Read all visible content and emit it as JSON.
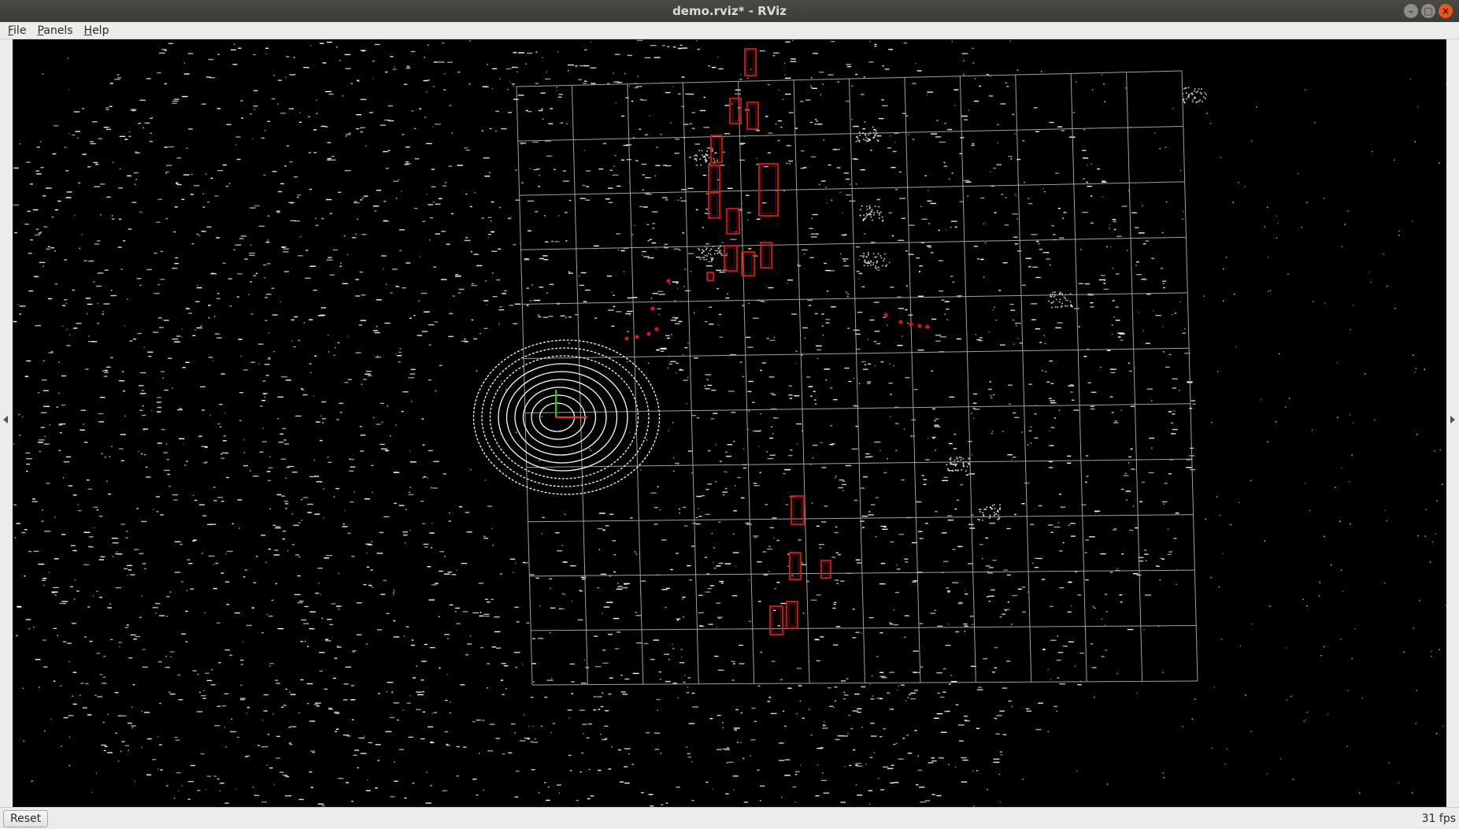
{
  "window": {
    "title": "demo.rviz* - RViz",
    "controls": {
      "minimize": "–",
      "maximize": "□",
      "close": "×"
    }
  },
  "menu": {
    "items": [
      {
        "label": "File"
      },
      {
        "label": "Panels"
      },
      {
        "label": "Help"
      }
    ]
  },
  "status": {
    "reset_label": "Reset",
    "fps": "31 fps"
  },
  "colors": {
    "background": "#000000",
    "points": "#ffffff",
    "grid": "#a0a0a0",
    "boxes": "#d01818",
    "axis_x": "#ff2a2a",
    "axis_y": "#22cc22"
  },
  "icons": {
    "minimize": "minimize-icon",
    "maximize": "maximize-icon",
    "close": "close-icon",
    "left_panel_toggle": "chevron-left-icon",
    "right_panel_toggle": "chevron-right-icon"
  }
}
